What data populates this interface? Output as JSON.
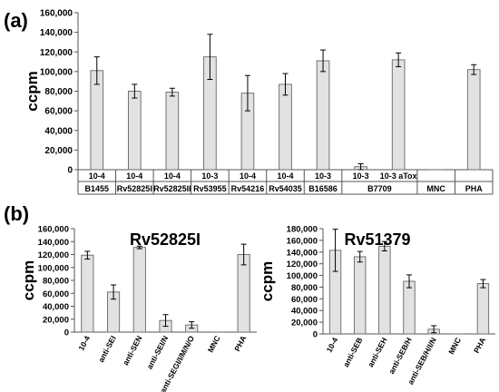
{
  "panel_labels": {
    "a": "(a)",
    "b": "(b)"
  },
  "chart_data": [
    {
      "type": "bar",
      "panel": "(a)",
      "title": "",
      "ylabel": "ccpm",
      "ylim": [
        0,
        160000
      ],
      "yticks": [
        "0",
        "20,000",
        "40,000",
        "60,000",
        "80,000",
        "100,000",
        "120,000",
        "140,000",
        "160,000"
      ],
      "categories": [
        "10-4",
        "10-4",
        "10-4",
        "10-3",
        "10-4",
        "10-4",
        "10-3",
        "10-3",
        "10-3 aTox",
        "",
        ""
      ],
      "groups": [
        "B1455",
        "Rv52825I",
        "Rv52825II",
        "Rv53955",
        "Rv54216",
        "Rv54035",
        "B16586",
        "B7709",
        "MNC",
        "PHA"
      ],
      "values": [
        101000,
        80000,
        79000,
        115000,
        78000,
        87000,
        111000,
        3000,
        112000,
        0,
        102000
      ],
      "errors": [
        14000,
        7000,
        4000,
        23000,
        18000,
        11000,
        11000,
        3000,
        7000,
        0,
        5000
      ]
    },
    {
      "type": "bar",
      "panel": "(b)",
      "title": "Rv52825I",
      "ylabel": "ccpm",
      "ylim": [
        0,
        160000
      ],
      "yticks": [
        "0",
        "20,000",
        "40,000",
        "60,000",
        "80,000",
        "100,000",
        "120,000",
        "140,000",
        "160,000"
      ],
      "categories": [
        "10-4",
        "anti-SEI",
        "anti-SEN",
        "anti-SEI/N",
        "anti-SEGI/I/M/N/O",
        "MNC",
        "PHA"
      ],
      "values": [
        119000,
        62000,
        131000,
        18000,
        11000,
        0,
        120000
      ],
      "errors": [
        6000,
        11000,
        2000,
        9000,
        5000,
        0,
        16000
      ]
    },
    {
      "type": "bar",
      "panel": "(b)",
      "title": "Rv51379",
      "ylabel": "ccpm",
      "ylim": [
        0,
        180000
      ],
      "yticks": [
        "0",
        "20,000",
        "40,000",
        "60,000",
        "80,000",
        "100,000",
        "120,000",
        "140,000",
        "160,000",
        "180,000"
      ],
      "categories": [
        "10-4",
        "anti-SEB",
        "anti-SEH",
        "anti-SEB/H",
        "anti-SEB/H/I/N",
        "MNC",
        "PHA"
      ],
      "values": [
        143000,
        132000,
        150000,
        90000,
        8000,
        0,
        86000
      ],
      "errors": [
        36000,
        9000,
        8000,
        11000,
        6000,
        0,
        7000
      ]
    }
  ]
}
